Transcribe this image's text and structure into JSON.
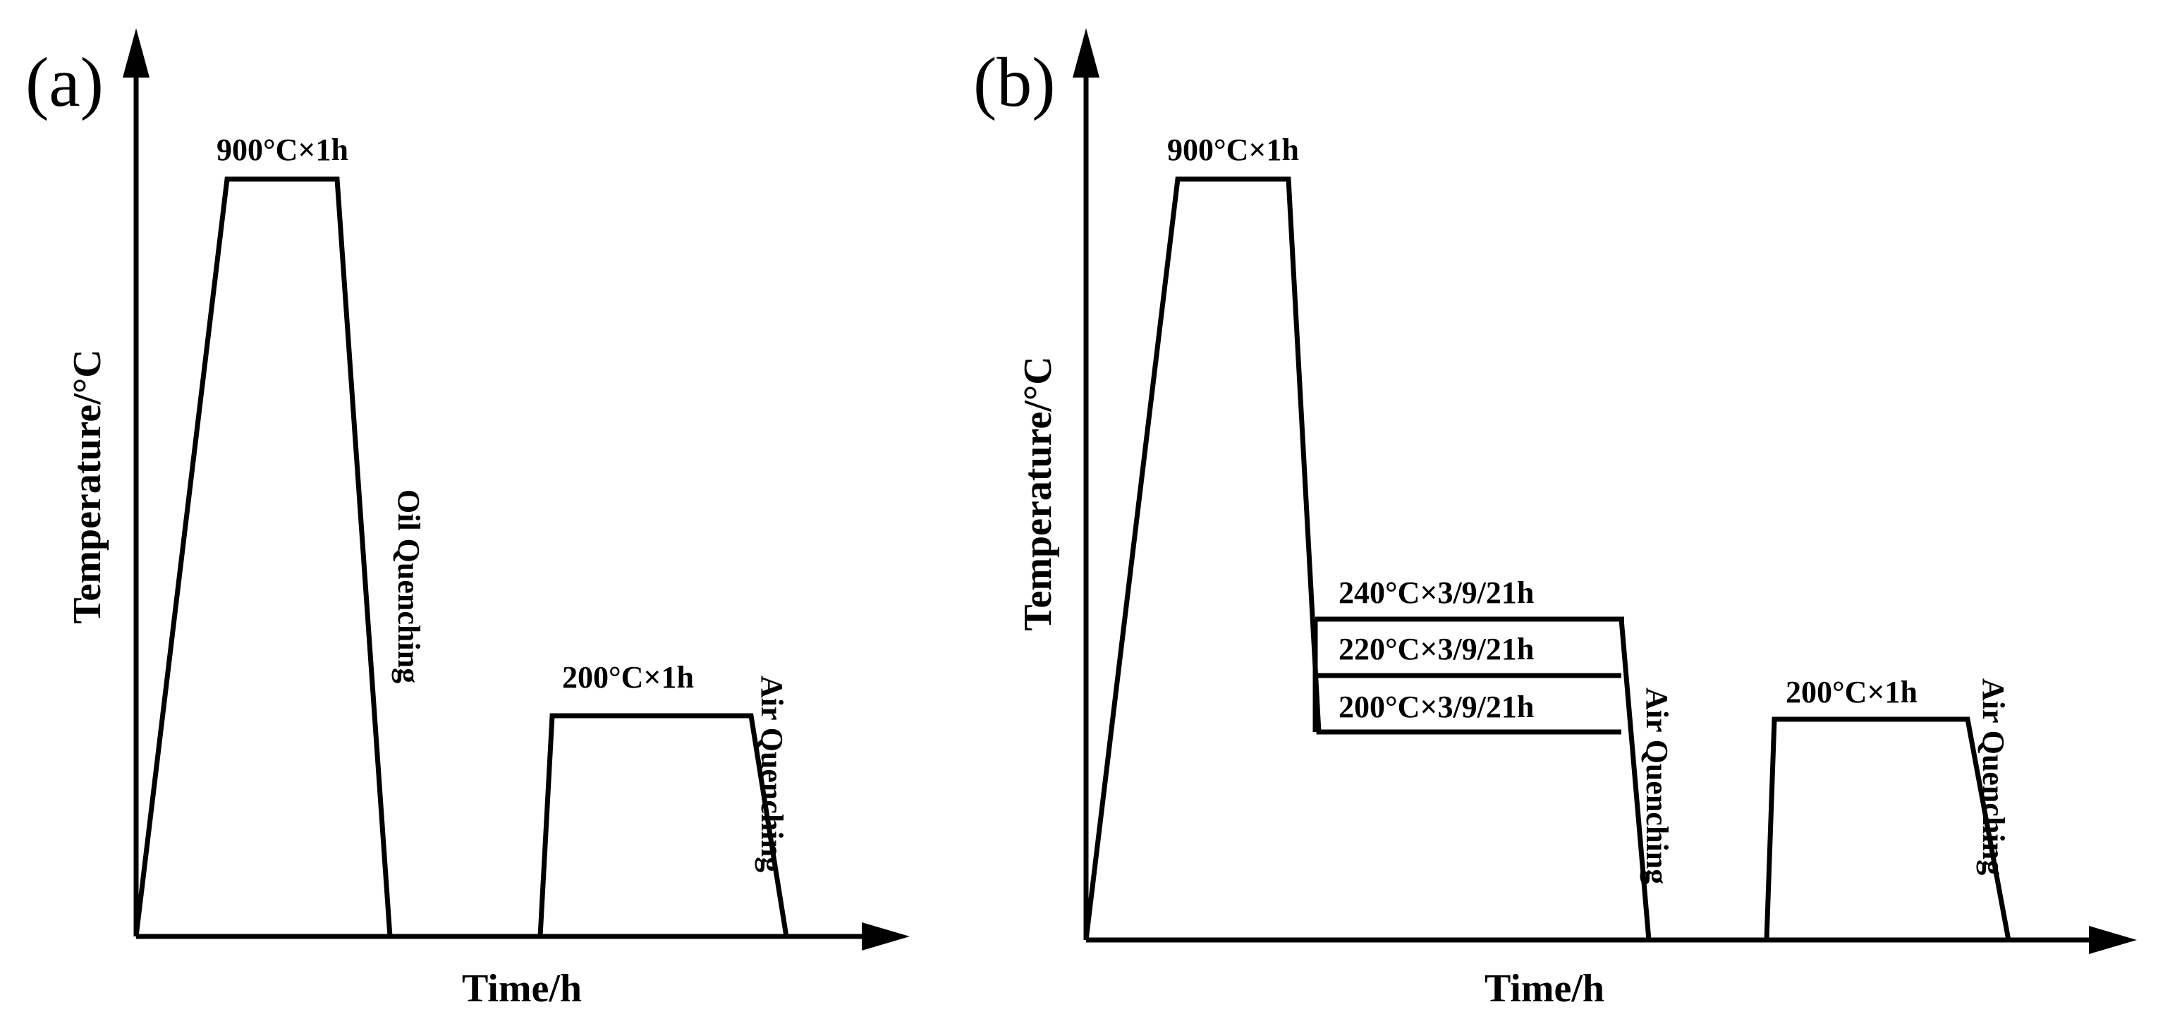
{
  "panels": {
    "a": {
      "label": "(a)",
      "xlabel": "Time/h",
      "ylabel": "Temperature/°C",
      "austenitize": "900°C×1h",
      "quench": "Oil Quenching",
      "temper": "200°C×1h",
      "final_quench": "Air Quenching"
    },
    "b": {
      "label": "(b)",
      "xlabel": "Time/h",
      "ylabel": "Temperature/°C",
      "austenitize": "900°C×1h",
      "hold_240": "240°C×3/9/21h",
      "hold_220": "220°C×3/9/21h",
      "hold_200": "200°C×3/9/21h",
      "quench": "Air Quenching",
      "temper": "200°C×1h",
      "final_quench": "Air Quenching"
    }
  },
  "colors": {
    "line": "#000000",
    "background": "#ffffff"
  }
}
